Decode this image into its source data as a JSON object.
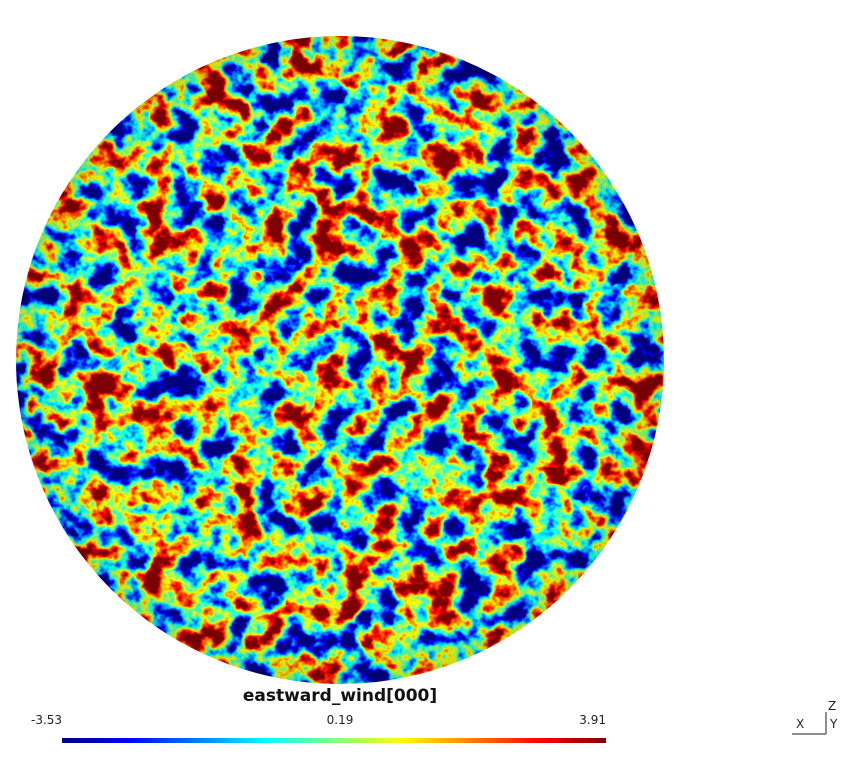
{
  "colorbar": {
    "title": "eastward_wind[000]",
    "min": -3.53,
    "mid": 0.19,
    "max": 3.91
  },
  "axes": {
    "z": "Z",
    "x": "X",
    "y": "Y"
  }
}
